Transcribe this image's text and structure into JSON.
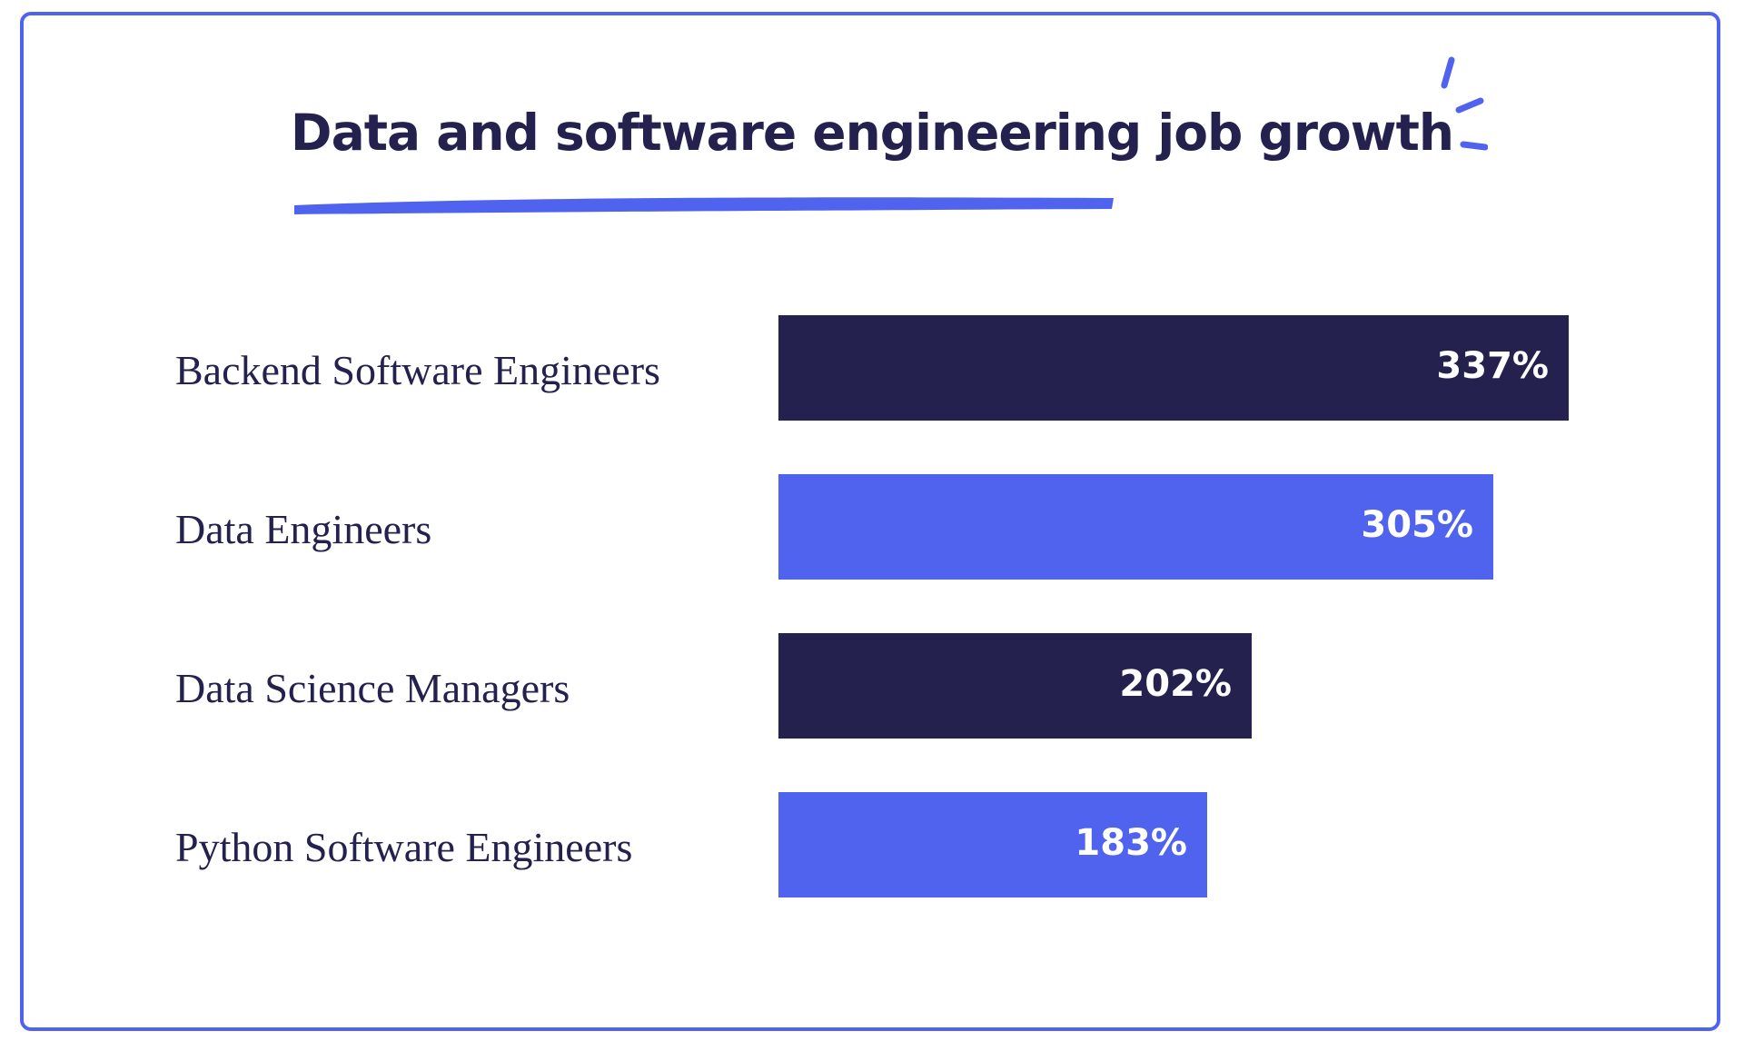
{
  "chart_data": {
    "type": "bar",
    "orientation": "horizontal",
    "title": "Data and software engineering job growth",
    "categories": [
      "Backend Software Engineers",
      "Data Engineers",
      "Data Science Managers",
      "Python Software Engineers"
    ],
    "values": [
      337,
      305,
      202,
      183
    ],
    "value_labels": [
      "337%",
      "305%",
      "202%",
      "183%"
    ],
    "bar_colors": [
      "#24214f",
      "#4f63ee",
      "#24214f",
      "#4f63ee"
    ],
    "xlim": [
      0,
      337
    ],
    "grid": false,
    "legend": "none"
  },
  "colors": {
    "accent": "#4f63ee",
    "navy": "#24214f",
    "background": "#ffffff"
  },
  "icons": {
    "sparkle": "sparkle-icon"
  }
}
